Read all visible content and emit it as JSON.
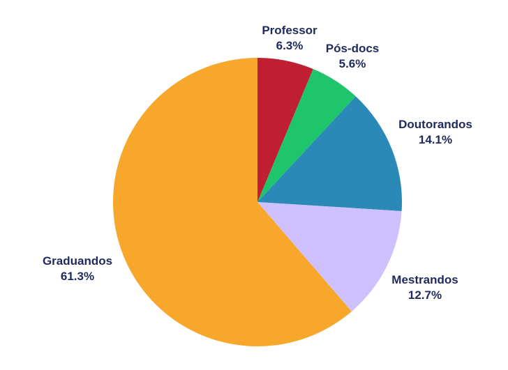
{
  "chart_data": {
    "type": "pie",
    "title": "",
    "slices": [
      {
        "label": "Professor",
        "value": 6.3,
        "display": "6.3%",
        "color": "#be2031"
      },
      {
        "label": "Pós-docs",
        "value": 5.6,
        "display": "5.6%",
        "color": "#1ec56b"
      },
      {
        "label": "Doutorandos",
        "value": 14.1,
        "display": "14.1%",
        "color": "#2b89b8"
      },
      {
        "label": "Mestrandos",
        "value": 12.7,
        "display": "12.7%",
        "color": "#cfc1ff"
      },
      {
        "label": "Graduandos",
        "value": 61.3,
        "display": "61.3%",
        "color": "#f7a72b"
      }
    ],
    "start_angle": "12 o'clock",
    "direction": "clockwise",
    "legend": "none"
  }
}
